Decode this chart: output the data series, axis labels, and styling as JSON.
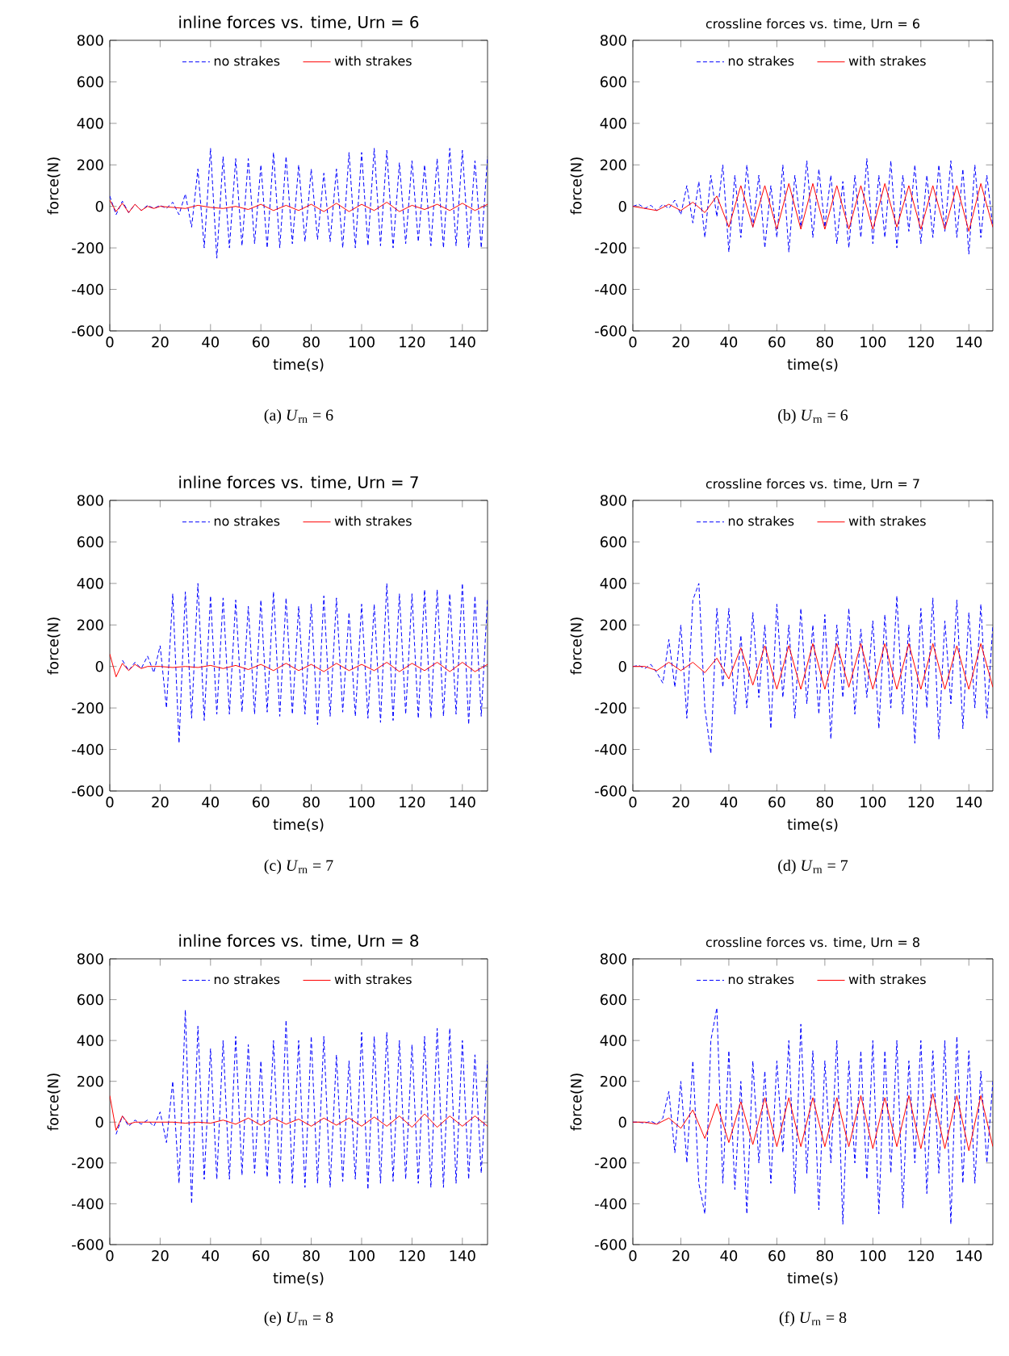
{
  "chart_data": [
    {
      "type": "line",
      "title": "inline forces vs. time, Urn = 6",
      "xlabel": "time(s)",
      "ylabel": "force(N)",
      "xlim": [
        0,
        150
      ],
      "ylim": [
        -600,
        800
      ],
      "xticks": [
        0,
        20,
        40,
        60,
        80,
        100,
        120,
        140
      ],
      "yticks": [
        -600,
        -400,
        -200,
        0,
        200,
        400,
        600,
        800
      ],
      "legend": "top",
      "annotations": [
        "(a) *U*$_{rn}$ = 6"
      ],
      "series": [
        {
          "name": "no strakes",
          "color": "#0000ff",
          "line_style": "dashed",
          "x": [
            0,
            2.5,
            5,
            7.5,
            10,
            12.5,
            15,
            17.5,
            20,
            22.5,
            25,
            27.5,
            30,
            32.5,
            35,
            37.5,
            40,
            42.5,
            45,
            47.5,
            50,
            52.5,
            55,
            57.5,
            60,
            62.5,
            65,
            67.5,
            70,
            72.5,
            75,
            77.5,
            80,
            82.5,
            85,
            87.5,
            90,
            92.5,
            95,
            97.5,
            100,
            102.5,
            105,
            107.5,
            110,
            112.5,
            115,
            117.5,
            120,
            122.5,
            125,
            127.5,
            130,
            132.5,
            135,
            137.5,
            140,
            142.5,
            145,
            147.5,
            150
          ],
          "values": [
            50,
            -40,
            25,
            -30,
            10,
            -20,
            5,
            -10,
            5,
            -10,
            20,
            -40,
            60,
            -100,
            180,
            -200,
            280,
            -250,
            240,
            -200,
            230,
            -190,
            230,
            -180,
            200,
            -200,
            260,
            -200,
            240,
            -180,
            200,
            -170,
            180,
            -160,
            160,
            -170,
            180,
            -200,
            260,
            -200,
            260,
            -190,
            280,
            -190,
            270,
            -200,
            210,
            -180,
            220,
            -170,
            200,
            -190,
            230,
            -200,
            280,
            -190,
            270,
            -200,
            220,
            -200,
            240
          ]
        },
        {
          "name": "with strakes",
          "color": "#ff0000",
          "line_style": "solid",
          "x": [
            0,
            2.5,
            5,
            7.5,
            10,
            12.5,
            15,
            17.5,
            20,
            25,
            30,
            35,
            40,
            45,
            50,
            55,
            60,
            65,
            70,
            75,
            80,
            85,
            90,
            95,
            100,
            105,
            110,
            115,
            120,
            125,
            130,
            135,
            140,
            145,
            150
          ],
          "values": [
            30,
            -25,
            15,
            -30,
            10,
            -20,
            0,
            -10,
            0,
            -5,
            -10,
            5,
            -5,
            -10,
            0,
            -15,
            10,
            -20,
            5,
            -20,
            10,
            -25,
            15,
            -25,
            10,
            -20,
            20,
            -25,
            5,
            -15,
            10,
            -20,
            15,
            -20,
            10
          ]
        }
      ]
    },
    {
      "type": "line",
      "title": "crossline forces vs. time, Urn = 6",
      "xlabel": "time(s)",
      "ylabel": "force(N)",
      "xlim": [
        0,
        150
      ],
      "ylim": [
        -600,
        800
      ],
      "xticks": [
        0,
        20,
        40,
        60,
        80,
        100,
        120,
        140
      ],
      "yticks": [
        -600,
        -400,
        -200,
        0,
        200,
        400,
        600,
        800
      ],
      "legend": "top",
      "annotations": [
        "(b) *U*$_{rn}$ = 6"
      ],
      "series": [
        {
          "name": "no strakes",
          "color": "#0000ff",
          "line_style": "dashed",
          "x": [
            0,
            2.5,
            5,
            7.5,
            10,
            12.5,
            15,
            17.5,
            20,
            22.5,
            25,
            27.5,
            30,
            32.5,
            35,
            37.5,
            40,
            42.5,
            45,
            47.5,
            50,
            52.5,
            55,
            57.5,
            60,
            62.5,
            65,
            67.5,
            70,
            72.5,
            75,
            77.5,
            80,
            82.5,
            85,
            87.5,
            90,
            92.5,
            95,
            97.5,
            100,
            102.5,
            105,
            107.5,
            110,
            112.5,
            115,
            117.5,
            120,
            122.5,
            125,
            127.5,
            130,
            132.5,
            135,
            137.5,
            140,
            142.5,
            145,
            147.5,
            150
          ],
          "values": [
            0,
            10,
            -10,
            5,
            -20,
            10,
            -10,
            30,
            -40,
            100,
            -80,
            120,
            -150,
            150,
            -50,
            200,
            -220,
            150,
            -150,
            200,
            -100,
            150,
            -200,
            100,
            -150,
            200,
            -220,
            150,
            -100,
            220,
            -150,
            180,
            -100,
            150,
            -180,
            120,
            -200,
            150,
            -150,
            230,
            -180,
            150,
            -150,
            220,
            -200,
            150,
            -120,
            200,
            -180,
            150,
            -150,
            200,
            -120,
            220,
            -150,
            180,
            -230,
            200,
            -150,
            150,
            -100
          ]
        },
        {
          "name": "with strakes",
          "color": "#ff0000",
          "line_style": "solid",
          "x": [
            0,
            5,
            10,
            15,
            20,
            25,
            30,
            35,
            40,
            45,
            50,
            55,
            60,
            65,
            70,
            75,
            80,
            85,
            90,
            95,
            100,
            105,
            110,
            115,
            120,
            125,
            130,
            135,
            140,
            145,
            150
          ],
          "values": [
            0,
            -10,
            -20,
            10,
            -20,
            20,
            -30,
            50,
            -100,
            100,
            -100,
            100,
            -110,
            110,
            -110,
            110,
            -110,
            100,
            -110,
            100,
            -110,
            110,
            -100,
            100,
            -110,
            100,
            -110,
            100,
            -120,
            110,
            -100
          ]
        }
      ]
    },
    {
      "type": "line",
      "title": "inline forces vs. time, Urn = 7",
      "xlabel": "time(s)",
      "ylabel": "force(N)",
      "xlim": [
        0,
        150
      ],
      "ylim": [
        -600,
        800
      ],
      "xticks": [
        0,
        20,
        40,
        60,
        80,
        100,
        120,
        140
      ],
      "yticks": [
        -600,
        -400,
        -200,
        0,
        200,
        400,
        600,
        800
      ],
      "legend": "top",
      "annotations": [
        "(c) *U*$_{rn}$ = 7"
      ],
      "series": [
        {
          "name": "no strakes",
          "color": "#0000ff",
          "line_style": "dashed",
          "x": [
            5,
            7.5,
            10,
            12.5,
            15,
            17.5,
            20,
            22.5,
            25,
            27.5,
            30,
            32.5,
            35,
            37.5,
            40,
            42.5,
            45,
            47.5,
            50,
            52.5,
            55,
            57.5,
            60,
            62.5,
            65,
            67.5,
            70,
            72.5,
            75,
            77.5,
            80,
            82.5,
            85,
            87.5,
            90,
            92.5,
            95,
            97.5,
            100,
            102.5,
            105,
            107.5,
            110,
            112.5,
            115,
            117.5,
            120,
            122.5,
            125,
            127.5,
            130,
            132.5,
            135,
            137.5,
            140,
            142.5,
            145,
            147.5,
            150
          ],
          "values": [
            30,
            -20,
            20,
            -10,
            50,
            -30,
            100,
            -200,
            350,
            -370,
            360,
            -250,
            400,
            -260,
            340,
            -230,
            330,
            -230,
            320,
            -220,
            290,
            -230,
            320,
            -220,
            360,
            -240,
            330,
            -230,
            290,
            -230,
            300,
            -280,
            340,
            -240,
            330,
            -220,
            260,
            -240,
            300,
            -250,
            300,
            -270,
            400,
            -260,
            350,
            -230,
            350,
            -250,
            370,
            -250,
            370,
            -240,
            350,
            -230,
            400,
            -280,
            340,
            -240,
            330
          ]
        },
        {
          "name": "with strakes",
          "color": "#ff0000",
          "line_style": "solid",
          "x": [
            0,
            2.5,
            5,
            7.5,
            10,
            12.5,
            15,
            20,
            25,
            30,
            35,
            40,
            45,
            50,
            55,
            60,
            65,
            70,
            75,
            80,
            85,
            90,
            95,
            100,
            105,
            110,
            115,
            120,
            125,
            130,
            135,
            140,
            145,
            150
          ],
          "values": [
            60,
            -50,
            15,
            -20,
            10,
            -10,
            0,
            0,
            -5,
            0,
            -5,
            5,
            -10,
            5,
            -15,
            10,
            -20,
            15,
            -20,
            10,
            -25,
            15,
            -20,
            10,
            -20,
            20,
            -25,
            15,
            -20,
            20,
            -25,
            20,
            -25,
            10
          ]
        }
      ]
    },
    {
      "type": "line",
      "title": "crossline forces vs. time, Urn = 7",
      "xlabel": "time(s)",
      "ylabel": "force(N)",
      "xlim": [
        0,
        150
      ],
      "ylim": [
        -600,
        800
      ],
      "xticks": [
        0,
        20,
        40,
        60,
        80,
        100,
        120,
        140
      ],
      "yticks": [
        -600,
        -400,
        -200,
        0,
        200,
        400,
        600,
        800
      ],
      "legend": "top",
      "annotations": [
        "(d) *U*$_{rn}$ = 7"
      ],
      "series": [
        {
          "name": "no strakes",
          "color": "#0000ff",
          "line_style": "dashed",
          "x": [
            0,
            2.5,
            5,
            7.5,
            10,
            12.5,
            15,
            17.5,
            20,
            22.5,
            25,
            27.5,
            30,
            32.5,
            35,
            37.5,
            40,
            42.5,
            45,
            47.5,
            50,
            52.5,
            55,
            57.5,
            60,
            62.5,
            65,
            67.5,
            70,
            72.5,
            75,
            77.5,
            80,
            82.5,
            85,
            87.5,
            90,
            92.5,
            95,
            97.5,
            100,
            102.5,
            105,
            107.5,
            110,
            112.5,
            115,
            117.5,
            120,
            122.5,
            125,
            127.5,
            130,
            132.5,
            135,
            137.5,
            140,
            142.5,
            145,
            147.5,
            150
          ],
          "values": [
            0,
            5,
            -10,
            10,
            -30,
            -80,
            130,
            -100,
            200,
            -250,
            320,
            400,
            -200,
            -420,
            280,
            -100,
            280,
            -230,
            150,
            -200,
            260,
            -150,
            200,
            -300,
            300,
            -150,
            200,
            -250,
            280,
            -180,
            200,
            -230,
            250,
            -350,
            200,
            -150,
            280,
            -230,
            180,
            -150,
            220,
            -300,
            250,
            -200,
            340,
            -230,
            200,
            -370,
            280,
            -200,
            330,
            -350,
            220,
            -180,
            320,
            -300,
            260,
            -200,
            300,
            -250,
            200
          ]
        },
        {
          "name": "with strakes",
          "color": "#ff0000",
          "line_style": "solid",
          "x": [
            0,
            5,
            10,
            15,
            20,
            25,
            30,
            35,
            40,
            45,
            50,
            55,
            60,
            65,
            70,
            75,
            80,
            85,
            90,
            95,
            100,
            105,
            110,
            115,
            120,
            125,
            130,
            135,
            140,
            145,
            150
          ],
          "values": [
            0,
            0,
            -20,
            20,
            -20,
            20,
            -30,
            40,
            -60,
            90,
            -90,
            100,
            -110,
            100,
            -110,
            110,
            -110,
            110,
            -100,
            110,
            -110,
            110,
            -110,
            110,
            -110,
            110,
            -110,
            100,
            -110,
            110,
            -100
          ]
        }
      ]
    },
    {
      "type": "line",
      "title": "inline forces vs. time, Urn = 8",
      "xlabel": "time(s)",
      "ylabel": "force(N)",
      "xlim": [
        0,
        150
      ],
      "ylim": [
        -600,
        800
      ],
      "xticks": [
        0,
        20,
        40,
        60,
        80,
        100,
        120,
        140
      ],
      "yticks": [
        -600,
        -400,
        -200,
        0,
        200,
        400,
        600,
        800
      ],
      "legend": "top",
      "annotations": [
        "(e) *U*$_{rn}$ = 8"
      ],
      "series": [
        {
          "name": "no strakes",
          "color": "#0000ff",
          "line_style": "dashed",
          "x": [
            2.5,
            5,
            7.5,
            10,
            12.5,
            15,
            17.5,
            20,
            22.5,
            25,
            27.5,
            30,
            32.5,
            35,
            37.5,
            40,
            42.5,
            45,
            47.5,
            50,
            52.5,
            55,
            57.5,
            60,
            62.5,
            65,
            67.5,
            70,
            72.5,
            75,
            77.5,
            80,
            82.5,
            85,
            87.5,
            90,
            92.5,
            95,
            97.5,
            100,
            102.5,
            105,
            107.5,
            110,
            112.5,
            115,
            117.5,
            120,
            122.5,
            125,
            127.5,
            130,
            132.5,
            135,
            137.5,
            140,
            142.5,
            145,
            147.5,
            150
          ],
          "values": [
            -60,
            30,
            -20,
            10,
            -10,
            10,
            -20,
            50,
            -100,
            200,
            -300,
            550,
            -400,
            470,
            -280,
            360,
            -280,
            400,
            -280,
            420,
            -260,
            380,
            -250,
            300,
            -270,
            400,
            -300,
            500,
            -300,
            400,
            -320,
            420,
            -300,
            420,
            -320,
            330,
            -290,
            300,
            -280,
            440,
            -330,
            420,
            -300,
            440,
            -290,
            400,
            -280,
            380,
            -300,
            420,
            -320,
            460,
            -320,
            460,
            -300,
            400,
            -280,
            330,
            -250,
            300
          ]
        },
        {
          "name": "with strakes",
          "color": "#ff0000",
          "line_style": "solid",
          "x": [
            0,
            2.5,
            5,
            7.5,
            10,
            15,
            20,
            25,
            30,
            35,
            40,
            45,
            50,
            55,
            60,
            65,
            70,
            75,
            80,
            85,
            90,
            95,
            100,
            105,
            110,
            115,
            120,
            125,
            130,
            135,
            140,
            145,
            150
          ],
          "values": [
            130,
            -40,
            30,
            -10,
            0,
            0,
            0,
            0,
            -5,
            0,
            -5,
            10,
            -10,
            20,
            -15,
            20,
            -10,
            15,
            -20,
            20,
            -15,
            20,
            -20,
            25,
            -20,
            30,
            -25,
            40,
            -25,
            30,
            -20,
            30,
            -20
          ]
        }
      ]
    },
    {
      "type": "line",
      "title": "crossline forces vs. time, Urn = 8",
      "xlabel": "time(s)",
      "ylabel": "force(N)",
      "xlim": [
        0,
        150
      ],
      "ylim": [
        -600,
        800
      ],
      "xticks": [
        0,
        20,
        40,
        60,
        80,
        100,
        120,
        140
      ],
      "yticks": [
        -600,
        -400,
        -200,
        0,
        200,
        400,
        600,
        800
      ],
      "legend": "top",
      "annotations": [
        "(f) *U*$_{rn}$ = 8"
      ],
      "series": [
        {
          "name": "no strakes",
          "color": "#0000ff",
          "line_style": "dashed",
          "x": [
            0,
            2.5,
            5,
            7.5,
            10,
            12.5,
            15,
            17.5,
            20,
            22.5,
            25,
            27.5,
            30,
            32.5,
            35,
            37.5,
            40,
            42.5,
            45,
            47.5,
            50,
            52.5,
            55,
            57.5,
            60,
            62.5,
            65,
            67.5,
            70,
            72.5,
            75,
            77.5,
            80,
            82.5,
            85,
            87.5,
            90,
            92.5,
            95,
            97.5,
            100,
            102.5,
            105,
            107.5,
            110,
            112.5,
            115,
            117.5,
            120,
            122.5,
            125,
            127.5,
            130,
            132.5,
            135,
            137.5,
            140,
            142.5,
            145,
            147.5,
            150
          ],
          "values": [
            0,
            0,
            -5,
            5,
            -10,
            20,
            150,
            -150,
            200,
            -200,
            300,
            -300,
            -450,
            400,
            560,
            -300,
            350,
            -330,
            200,
            -450,
            300,
            -200,
            250,
            -300,
            300,
            -150,
            400,
            -350,
            480,
            -250,
            350,
            -430,
            300,
            -200,
            400,
            -500,
            300,
            -200,
            350,
            -280,
            400,
            -450,
            350,
            -250,
            400,
            -420,
            300,
            -200,
            400,
            -350,
            350,
            -250,
            400,
            -500,
            420,
            -300,
            350,
            -300,
            250,
            -200,
            200
          ]
        },
        {
          "name": "with strakes",
          "color": "#ff0000",
          "line_style": "solid",
          "x": [
            0,
            5,
            10,
            15,
            20,
            25,
            30,
            35,
            40,
            45,
            50,
            55,
            60,
            65,
            70,
            75,
            80,
            85,
            90,
            95,
            100,
            105,
            110,
            115,
            120,
            125,
            130,
            135,
            140,
            145,
            150
          ],
          "values": [
            0,
            0,
            -10,
            20,
            -30,
            60,
            -80,
            90,
            -100,
            100,
            -110,
            120,
            -120,
            120,
            -120,
            120,
            -120,
            120,
            -120,
            130,
            -130,
            120,
            -120,
            130,
            -130,
            140,
            -130,
            130,
            -140,
            130,
            -120
          ]
        }
      ]
    }
  ]
}
